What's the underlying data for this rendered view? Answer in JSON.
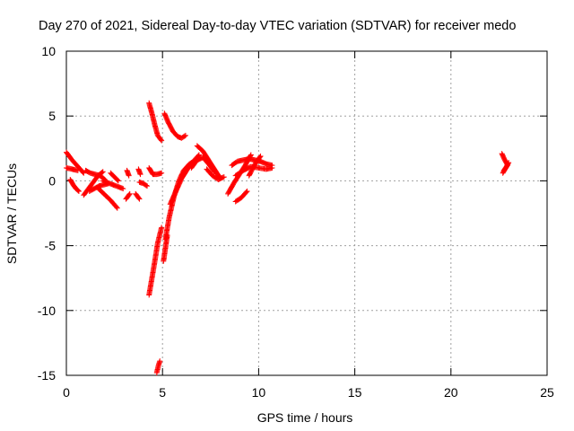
{
  "chart_data": {
    "type": "scatter",
    "title": "Day 270 of 2021, Sidereal Day-to-day VTEC variation (SDTVAR) for receiver medo",
    "xlabel": "GPS time / hours",
    "ylabel": "SDTVAR / TECUs",
    "xlim": [
      0,
      25
    ],
    "ylim": [
      -15,
      10
    ],
    "xticks": [
      0,
      5,
      10,
      15,
      20,
      25
    ],
    "yticks": [
      -15,
      -10,
      -5,
      0,
      5,
      10
    ],
    "grid": true,
    "marker": "+",
    "series": [
      {
        "name": "SDTVAR",
        "color": "#ff0000",
        "segments": [
          {
            "x": [
              0.0,
              0.3,
              0.6,
              0.9
            ],
            "y": [
              2.2,
              1.6,
              1.1,
              0.6
            ]
          },
          {
            "x": [
              0.0,
              0.3,
              0.6
            ],
            "y": [
              1.0,
              0.9,
              0.8
            ]
          },
          {
            "x": [
              0.2,
              0.35,
              0.5,
              0.65
            ],
            "y": [
              0.1,
              -0.3,
              -0.6,
              -0.8
            ]
          },
          {
            "x": [
              0.9,
              1.15,
              1.4,
              1.65,
              1.9
            ],
            "y": [
              -1.1,
              -0.6,
              -0.1,
              0.4,
              0.7
            ]
          },
          {
            "x": [
              1.0,
              1.25,
              1.5,
              1.75,
              2.0
            ],
            "y": [
              0.8,
              0.6,
              0.5,
              0.4,
              0.1
            ]
          },
          {
            "x": [
              1.2,
              1.45,
              1.7,
              1.95,
              2.2
            ],
            "y": [
              -0.8,
              -0.6,
              -0.4,
              -0.3,
              -0.2
            ]
          },
          {
            "x": [
              1.6,
              1.95,
              2.3,
              2.65
            ],
            "y": [
              -0.5,
              -1.0,
              -1.5,
              -2.1
            ]
          },
          {
            "x": [
              1.9,
              2.25,
              2.6,
              2.95
            ],
            "y": [
              0.0,
              -0.2,
              -0.4,
              -0.6
            ]
          },
          {
            "x": [
              2.3,
              2.5,
              2.7
            ],
            "y": [
              0.6,
              0.3,
              0.0
            ]
          },
          {
            "x": [
              3.15,
              3.2,
              3.25
            ],
            "y": [
              0.8,
              0.6,
              0.4
            ]
          },
          {
            "x": [
              3.1,
              3.2,
              3.3
            ],
            "y": [
              -1.4,
              -1.2,
              -1.0
            ]
          },
          {
            "x": [
              3.75,
              3.8,
              3.85
            ],
            "y": [
              0.9,
              0.7,
              0.5
            ]
          },
          {
            "x": [
              3.8,
              4.0,
              4.2
            ],
            "y": [
              -0.1,
              -0.2,
              -0.4
            ]
          },
          {
            "x": [
              3.6,
              3.7,
              3.8
            ],
            "y": [
              -1.0,
              -1.2,
              -1.4
            ]
          },
          {
            "x": [
              4.3,
              4.5,
              4.7,
              4.95
            ],
            "y": [
              1.0,
              0.5,
              0.5,
              0.6
            ]
          },
          {
            "x": [
              4.3,
              4.45,
              4.6,
              4.75,
              4.95
            ],
            "y": [
              6.0,
              5.2,
              4.3,
              3.5,
              3.1
            ]
          },
          {
            "x": [
              4.3,
              4.45,
              4.6,
              4.75,
              4.95
            ],
            "y": [
              -8.8,
              -7.5,
              -6.2,
              -4.8,
              -3.6
            ]
          },
          {
            "x": [
              4.7,
              4.78,
              4.86
            ],
            "y": [
              -14.8,
              -14.3,
              -13.9
            ]
          },
          {
            "x": [
              5.1,
              5.3,
              5.55,
              5.8,
              6.0,
              6.2
            ],
            "y": [
              5.2,
              4.5,
              3.8,
              3.4,
              3.3,
              3.5
            ]
          },
          {
            "x": [
              5.05,
              5.15,
              5.25
            ],
            "y": [
              -6.2,
              -5.2,
              -4.2
            ]
          },
          {
            "x": [
              5.15,
              5.35,
              5.6,
              5.85,
              6.1,
              6.4,
              6.7
            ],
            "y": [
              -4.5,
              -2.8,
              -1.2,
              0.0,
              0.8,
              1.3,
              1.6
            ]
          },
          {
            "x": [
              5.4,
              5.7,
              6.0,
              6.3,
              6.6,
              6.9
            ],
            "y": [
              -1.8,
              -0.8,
              0.2,
              0.9,
              1.5,
              2.0
            ]
          },
          {
            "x": [
              6.8,
              7.1,
              7.4,
              7.7,
              8.0
            ],
            "y": [
              2.7,
              2.3,
              1.6,
              0.9,
              0.2
            ]
          },
          {
            "x": [
              6.5,
              6.8,
              7.1,
              7.4,
              7.7
            ],
            "y": [
              1.0,
              1.6,
              1.8,
              1.3,
              0.7
            ]
          },
          {
            "x": [
              7.3,
              7.6,
              7.9,
              8.2
            ],
            "y": [
              0.9,
              0.4,
              0.1,
              0.3
            ]
          },
          {
            "x": [
              8.4,
              8.7,
              9.0,
              9.3,
              9.6
            ],
            "y": [
              -1.0,
              -0.2,
              0.5,
              1.2,
              2.0
            ]
          },
          {
            "x": [
              8.8,
              9.1,
              9.4
            ],
            "y": [
              -1.6,
              -1.3,
              -0.8
            ]
          },
          {
            "x": [
              8.6,
              8.9,
              9.2,
              9.5,
              9.8,
              10.1,
              10.4,
              10.7
            ],
            "y": [
              1.2,
              1.5,
              1.6,
              1.7,
              1.6,
              1.5,
              1.3,
              1.2
            ]
          },
          {
            "x": [
              8.8,
              9.2,
              9.6,
              10.0,
              10.4,
              10.7
            ],
            "y": [
              0.4,
              0.8,
              1.1,
              1.0,
              0.9,
              1.0
            ]
          },
          {
            "x": [
              9.5,
              9.7,
              9.9,
              10.1
            ],
            "y": [
              0.4,
              1.0,
              1.5,
              1.9
            ]
          },
          {
            "x": [
              22.65,
              22.8,
              22.95
            ],
            "y": [
              2.1,
              1.6,
              1.2
            ]
          },
          {
            "x": [
              22.7,
              22.85,
              23.0
            ],
            "y": [
              0.6,
              1.0,
              1.4
            ]
          },
          {
            "x": [
              22.75,
              22.9
            ],
            "y": [
              0.8,
              1.1
            ]
          }
        ]
      }
    ]
  }
}
